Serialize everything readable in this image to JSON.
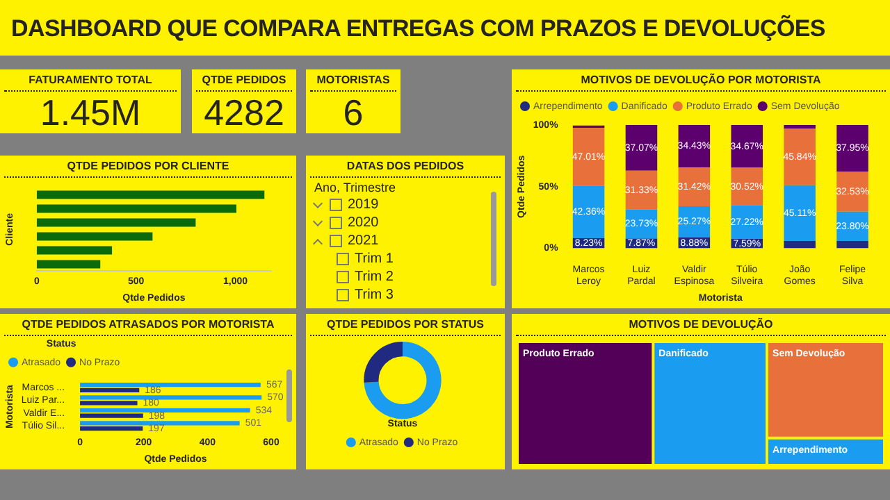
{
  "chart_data": [
    {
      "type": "other",
      "title": "DASHBOARD QUE COMPARA ENTREGAS COM PRAZOS E DEVOLUÇÕES"
    },
    {
      "type": "other",
      "title": "FATURAMENTO TOTAL",
      "annotations": [
        "1.45M"
      ]
    },
    {
      "type": "other",
      "title": "QTDE PEDIDOS",
      "annotations": [
        "4282"
      ]
    },
    {
      "type": "other",
      "title": "MOTORISTAS",
      "annotations": [
        "6"
      ]
    },
    {
      "type": "bar",
      "title": "QTDE PEDIDOS POR CLIENTE",
      "orientation": "horizontal",
      "categories": [
        null,
        null,
        null,
        null,
        null,
        null
      ],
      "values": [
        1146,
        1005,
        800,
        583,
        379,
        320
      ],
      "color": "#0b6b0b",
      "xlabel": "Qtde Pedidos",
      "ylabel": "Cliente",
      "xlim": [
        0,
        1180
      ],
      "xticks": [
        0,
        500,
        {
          "value": 1000,
          "label": "1,000"
        }
      ]
    },
    {
      "type": "other",
      "title": "DATAS DOS PEDIDOS",
      "annotations": [
        "Ano, Trimestre"
      ],
      "categories": [
        "2019",
        "2020",
        "2021",
        "Trim 1",
        "Trim 2",
        "Trim 3"
      ]
    },
    {
      "type": "bar",
      "title": "MOTIVOS DE DEVOLUÇÃO POR MOTORISTA",
      "stacked": true,
      "legend": "top left",
      "xlabel": "Motorista",
      "ylabel": "Qtde Pedidos",
      "categories": [
        "Marcos Leroy",
        "Luiz Pardal",
        "Valdir Espinosa",
        "Túlio Silveira",
        "João Gomes",
        "Felipe Silva"
      ],
      "ylim": [
        0,
        100
      ],
      "yticks": [
        {
          "value": 0,
          "label": "0%"
        },
        {
          "value": 50,
          "label": "50%"
        },
        {
          "value": 100,
          "label": "100%"
        }
      ],
      "series": [
        {
          "name": "Arrependimento",
          "color": "#1f2a80",
          "values": [
            8.23,
            7.87,
            8.88,
            7.59,
            6,
            6
          ],
          "value_labels": [
            "8.23%",
            "7.87%",
            "8.88%",
            "7.59%",
            null,
            null
          ]
        },
        {
          "name": "Danificado",
          "color": "#1a9cf0",
          "values": [
            42.36,
            23.73,
            25.27,
            27.22,
            45.11,
            23.8
          ],
          "value_labels": [
            "42.36%",
            "23.73%",
            "25.27%",
            "27.22%",
            "45.11%",
            "23.80%"
          ]
        },
        {
          "name": "Produto Errado",
          "color": "#e8703a",
          "values": [
            47.01,
            31.33,
            31.42,
            30.52,
            45.84,
            32.53
          ],
          "value_labels": [
            "47.01%",
            "31.33%",
            "31.42%",
            "30.52%",
            "45.84%",
            "32.53%"
          ]
        },
        {
          "name": "Sem Devolução",
          "color": "#5c006e",
          "values": [
            2,
            37.07,
            34.43,
            34.67,
            3,
            37.95
          ],
          "value_labels": [
            null,
            "37.07%",
            "34.43%",
            "34.67%",
            null,
            "37.95%"
          ]
        }
      ]
    },
    {
      "type": "bar",
      "title": "QTDE PEDIDOS ATRASADOS POR MOTORISTA",
      "orientation": "horizontal",
      "legend": "top left",
      "legend_title": "Status",
      "data_labels": true,
      "xlabel": "Qtde Pedidos",
      "ylabel": "Motorista",
      "categories": [
        "Marcos ...",
        "Luiz Par...",
        "Valdir E...",
        "Túlio Sil..."
      ],
      "xlim": [
        0,
        600
      ],
      "xticks": [
        0,
        200,
        400,
        600
      ],
      "series": [
        {
          "name": "Atrasado",
          "color": "#1a9cf0",
          "values": [
            567,
            570,
            534,
            501
          ]
        },
        {
          "name": "No Prazo",
          "color": "#1f2a80",
          "values": [
            186,
            180,
            198,
            197
          ]
        }
      ]
    },
    {
      "type": "donut",
      "title": "QTDE PEDIDOS POR STATUS",
      "legend": "bottom",
      "legend_title": "Status",
      "categories": [
        "Atrasado",
        "No Prazo"
      ],
      "values": [
        74,
        26
      ],
      "colors": [
        "#1a9cf0",
        "#1f2a80"
      ]
    },
    {
      "type": "other",
      "title": "MOTIVOS DE DEVOLUÇÃO",
      "categories": [
        "Produto Errado",
        "Danificado",
        "Sem Devolução",
        "Arrependimento"
      ],
      "colors": [
        "#520058",
        "#1a9cf0",
        "#e8703a",
        "#1a9cf0"
      ]
    }
  ]
}
